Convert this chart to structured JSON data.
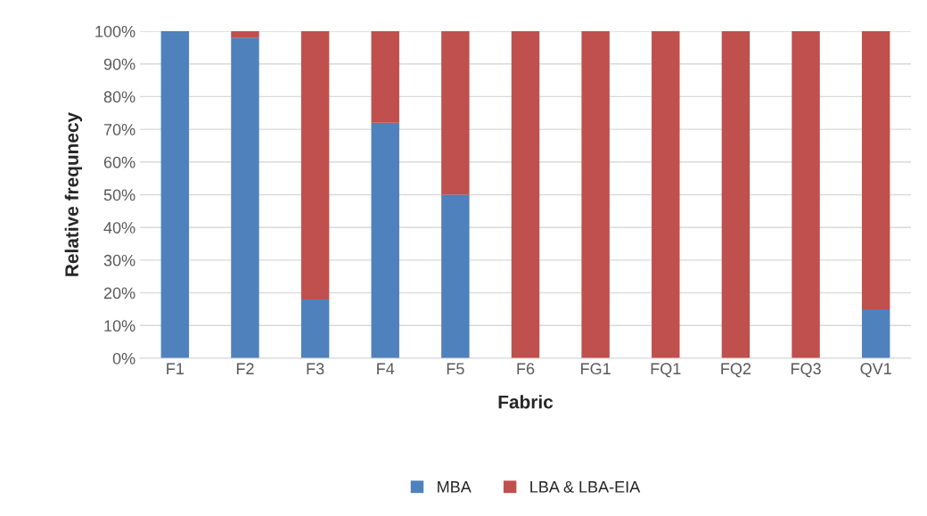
{
  "chart_data": {
    "type": "bar",
    "stacked": true,
    "xlabel": "Fabric",
    "ylabel": "Relative frequnecy",
    "categories": [
      "F1",
      "F2",
      "F3",
      "F4",
      "F5",
      "F6",
      "FG1",
      "FQ1",
      "FQ2",
      "FQ3",
      "QV1"
    ],
    "series": [
      {
        "name": "MBA",
        "color": "#4f81bd",
        "values": [
          100,
          98,
          18,
          72,
          50,
          0,
          0,
          0,
          0,
          0,
          15
        ]
      },
      {
        "name": "LBA & LBA-EIA",
        "color": "#c0504d",
        "values": [
          0,
          2,
          82,
          28,
          50,
          100,
          100,
          100,
          100,
          100,
          85
        ]
      }
    ],
    "ylim": [
      0,
      100
    ],
    "yticks": [
      {
        "value": 0,
        "label": "0%"
      },
      {
        "value": 10,
        "label": "10%"
      },
      {
        "value": 20,
        "label": "20%"
      },
      {
        "value": 30,
        "label": "30%"
      },
      {
        "value": 40,
        "label": "40%"
      },
      {
        "value": 50,
        "label": "50%"
      },
      {
        "value": 60,
        "label": "60%"
      },
      {
        "value": 70,
        "label": "70%"
      },
      {
        "value": 80,
        "label": "80%"
      },
      {
        "value": 90,
        "label": "90%"
      },
      {
        "value": 100,
        "label": "100%"
      }
    ],
    "grid": "y",
    "legend": "bottom"
  }
}
